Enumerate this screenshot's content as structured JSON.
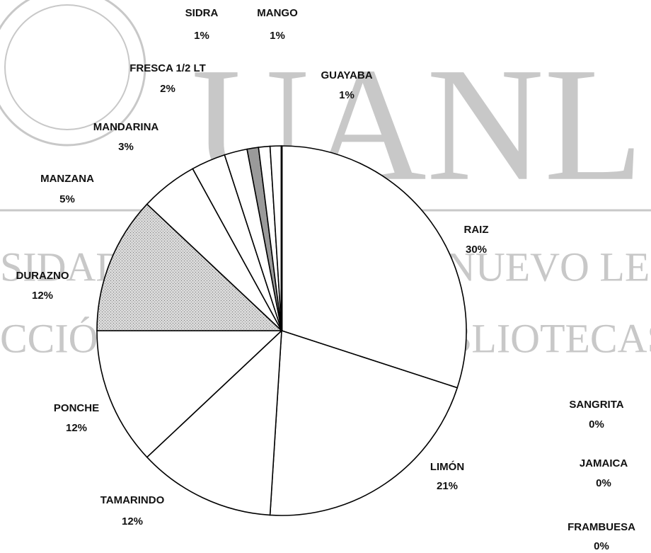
{
  "chart_data": {
    "type": "pie",
    "categories": [
      "RAIZ",
      "LIMÓN",
      "TAMARINDO",
      "PONCHE",
      "DURAZNO",
      "MANZANA",
      "MANDARINA",
      "FRESCA 1/2 LT",
      "SIDRA",
      "MANGO",
      "GUAYABA",
      "SANGRITA",
      "JAMAICA",
      "FRAMBUESA"
    ],
    "values": [
      30,
      21,
      12,
      12,
      12,
      5,
      3,
      2,
      1,
      1,
      1,
      0,
      0,
      0
    ],
    "value_labels": [
      "30%",
      "21%",
      "12%",
      "12%",
      "12%",
      "5%",
      "3%",
      "2%",
      "1%",
      "1%",
      "1%",
      "0%",
      "0%",
      "0%"
    ],
    "colors": [
      "#ffffff",
      "#ffffff",
      "#ffffff",
      "#ffffff",
      "#bdbdbd",
      "#ffffff",
      "#ffffff",
      "#ffffff",
      "#9a9a9a",
      "#ffffff",
      "#ffffff",
      "#ffffff",
      "#ffffff",
      "#000000"
    ]
  },
  "watermark": {
    "logo": "UANL",
    "line1": "SIDAD AUTÓNOMA DE NUEVO LEO",
    "line2": "CCIÓN GENERAL DE BIBLIOTECAS"
  }
}
